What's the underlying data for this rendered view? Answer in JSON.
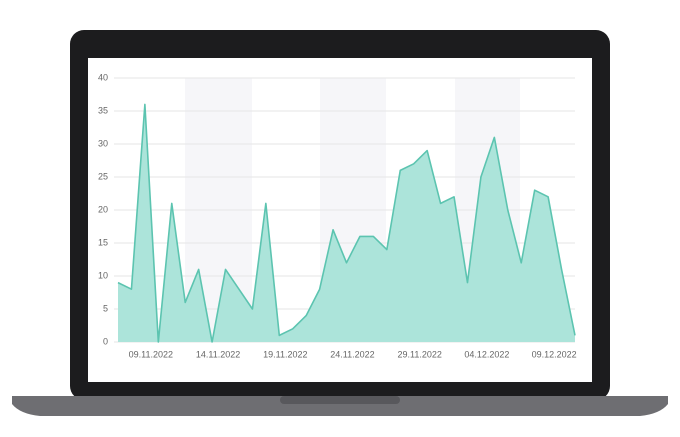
{
  "chart_data": {
    "type": "area",
    "x": [
      "07.11.2022",
      "08.11.2022",
      "09.11.2022",
      "10.11.2022",
      "11.11.2022",
      "12.11.2022",
      "13.11.2022",
      "14.11.2022",
      "15.11.2022",
      "16.11.2022",
      "17.11.2022",
      "18.11.2022",
      "19.11.2022",
      "20.11.2022",
      "21.11.2022",
      "22.11.2022",
      "23.11.2022",
      "24.11.2022",
      "25.11.2022",
      "26.11.2022",
      "27.11.2022",
      "28.11.2022",
      "29.11.2022",
      "30.11.2022",
      "01.12.2022",
      "02.12.2022",
      "03.12.2022",
      "04.12.2022",
      "05.12.2022",
      "06.12.2022",
      "07.12.2022",
      "08.12.2022",
      "09.12.2022",
      "10.12.2022",
      "11.12.2022"
    ],
    "values": [
      9,
      8,
      36,
      0,
      21,
      6,
      11,
      0,
      11,
      8,
      5,
      21,
      1,
      2,
      4,
      8,
      17,
      12,
      16,
      16,
      14,
      26,
      27,
      29,
      21,
      22,
      9,
      25,
      31,
      20,
      12,
      23,
      22,
      11,
      1
    ],
    "color": "#5cc4b0",
    "fill": "#ace4da",
    "xticks": [
      "09.11.2022",
      "14.11.2022",
      "19.11.2022",
      "24.11.2022",
      "29.11.2022",
      "04.12.2022",
      "09.12.2022"
    ],
    "ylim": [
      0,
      40
    ],
    "yticks": [
      0,
      5,
      10,
      15,
      20,
      25,
      30,
      35,
      40
    ],
    "grid": true
  }
}
